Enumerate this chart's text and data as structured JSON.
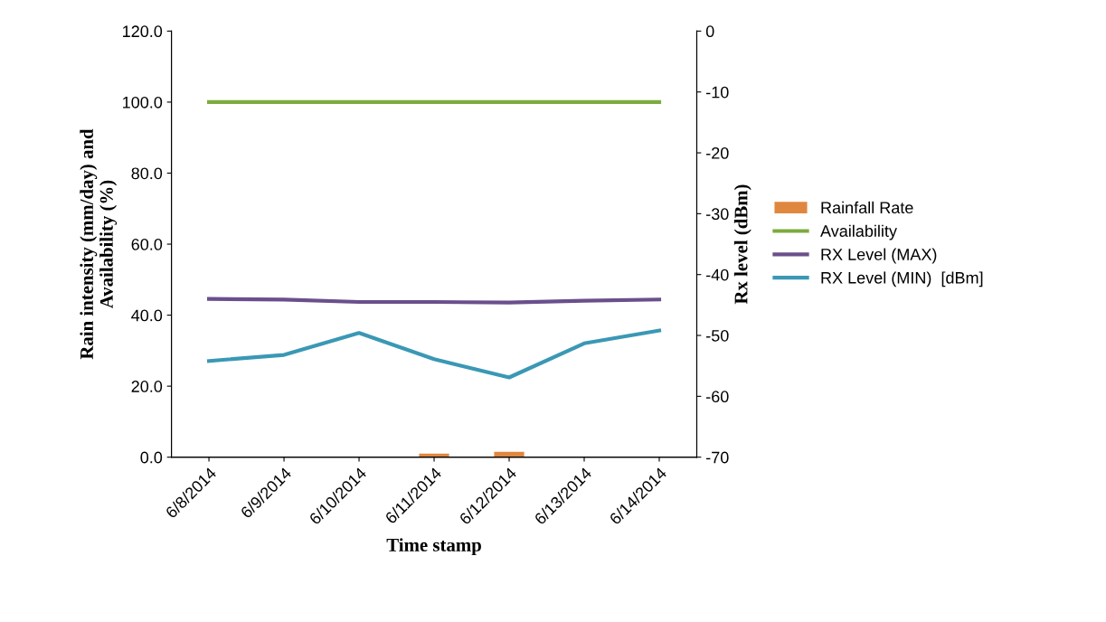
{
  "chart_data": {
    "type": "line",
    "xlabel": "Time stamp",
    "ylabel": "Rain intensity (mm/day) and\nAvailability (%)",
    "y2label": "Rx level (dBm)",
    "categories": [
      "6/8/2014",
      "6/9/2014",
      "6/10/2014",
      "6/11/2014",
      "6/12/2014",
      "6/13/2014",
      "6/14/2014"
    ],
    "series": [
      {
        "name": "Rainfall Rate",
        "type": "bar",
        "color": "#e0873f",
        "values": [
          0,
          0,
          0,
          1.0,
          1.5,
          0,
          0
        ]
      },
      {
        "name": "Availability",
        "color": "#7eab3e",
        "values": [
          100,
          100,
          100,
          100,
          100,
          100,
          100
        ]
      },
      {
        "name": "RX Level (MAX)",
        "color": "#6b4f8c",
        "axis": "y2",
        "values": [
          -44.0,
          -44.1,
          -44.5,
          -44.5,
          -44.6,
          -44.3,
          -44.1
        ]
      },
      {
        "name": "RX Level (MIN)  [dBm]",
        "color": "#3a98b5",
        "axis": "y2",
        "values": [
          -54.2,
          -53.2,
          -49.6,
          -53.9,
          -56.9,
          -51.3,
          -49.2
        ]
      }
    ],
    "ylim": [
      0,
      120
    ],
    "yticks": [
      {
        "value": 0,
        "label": "0.0"
      },
      {
        "value": 20,
        "label": "20.0"
      },
      {
        "value": 40,
        "label": "40.0"
      },
      {
        "value": 60,
        "label": "60.0"
      },
      {
        "value": 80,
        "label": "80.0"
      },
      {
        "value": 100,
        "label": "100.0"
      },
      {
        "value": 120,
        "label": "120.0"
      }
    ],
    "y2lim": [
      -70,
      0
    ],
    "y2ticks": [
      -70,
      -60,
      -50,
      -40,
      -30,
      -20,
      -10,
      0
    ],
    "legend": "right",
    "grid": false
  }
}
